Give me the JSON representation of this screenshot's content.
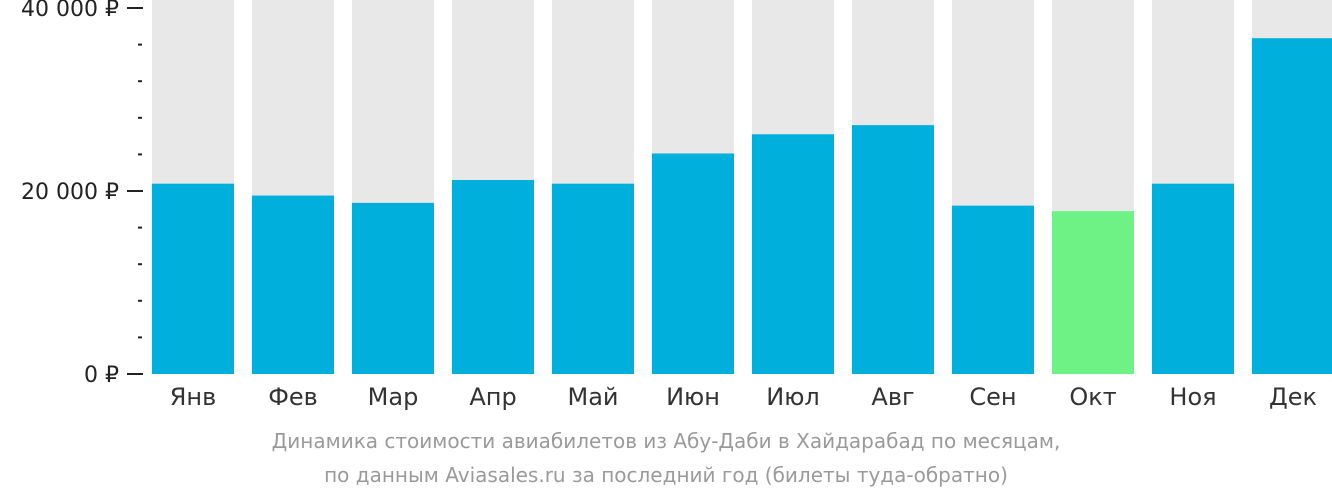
{
  "chart_data": {
    "type": "bar",
    "categories": [
      "Янв",
      "Фев",
      "Мар",
      "Апр",
      "Май",
      "Июн",
      "Июл",
      "Авг",
      "Сен",
      "Окт",
      "Ноя",
      "Дек"
    ],
    "values": [
      20800,
      19500,
      18700,
      21200,
      20800,
      24100,
      26200,
      27200,
      18400,
      17800,
      20800,
      36700
    ],
    "highlight_index": 9,
    "ylim": [
      0,
      40000
    ],
    "yticks": [
      {
        "value": 0,
        "label": "0 ₽"
      },
      {
        "value": 20000,
        "label": "20 000 ₽"
      },
      {
        "value": 40000,
        "label": "40 000 ₽"
      }
    ],
    "minor_tick_step": 4000,
    "colors": {
      "bar": "#00AFDC",
      "highlight": "#6EF285",
      "track": "#E8E8E8",
      "axis": "#222222"
    }
  },
  "caption": {
    "line1": "Динамика стоимости авиабилетов из Абу-Даби в Хайдарабад по месяцам,",
    "line2": "по данным Aviasales.ru за последний год (билеты туда-обратно)"
  }
}
